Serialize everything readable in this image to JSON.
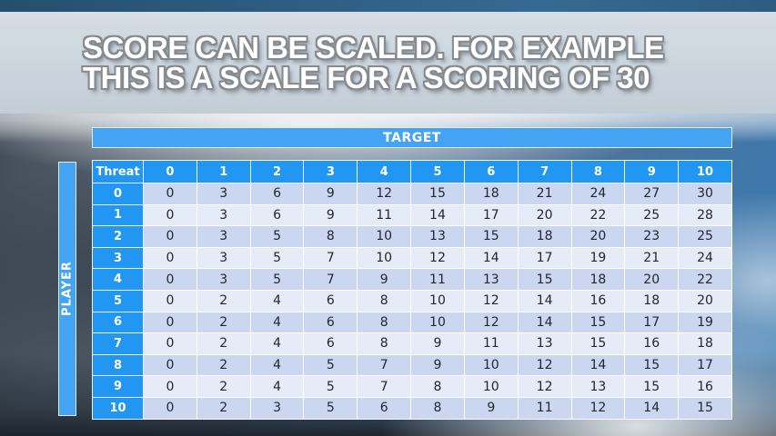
{
  "slide": {
    "title_line1": "SCORE CAN BE SCALED. FOR EXAMPLE",
    "title_line2": "THIS IS A SCALE FOR A SCORING OF 30"
  },
  "table": {
    "target_label": "TARGET",
    "player_label": "PLAYER",
    "threat_label": "Threat",
    "columns": [
      "0",
      "1",
      "2",
      "3",
      "4",
      "5",
      "6",
      "7",
      "8",
      "9",
      "10"
    ],
    "rows": [
      {
        "threat": "0",
        "values": [
          0,
          3,
          6,
          9,
          12,
          15,
          18,
          21,
          24,
          27,
          30
        ]
      },
      {
        "threat": "1",
        "values": [
          0,
          3,
          6,
          9,
          11,
          14,
          17,
          20,
          22,
          25,
          28
        ]
      },
      {
        "threat": "2",
        "values": [
          0,
          3,
          5,
          8,
          10,
          13,
          15,
          18,
          20,
          23,
          25
        ]
      },
      {
        "threat": "3",
        "values": [
          0,
          3,
          5,
          7,
          10,
          12,
          14,
          17,
          19,
          21,
          24
        ]
      },
      {
        "threat": "4",
        "values": [
          0,
          3,
          5,
          7,
          9,
          11,
          13,
          15,
          18,
          20,
          22
        ]
      },
      {
        "threat": "5",
        "values": [
          0,
          2,
          4,
          6,
          8,
          10,
          12,
          14,
          16,
          18,
          20
        ]
      },
      {
        "threat": "6",
        "values": [
          0,
          2,
          4,
          6,
          8,
          10,
          12,
          14,
          15,
          17,
          19
        ]
      },
      {
        "threat": "7",
        "values": [
          0,
          2,
          4,
          6,
          8,
          9,
          11,
          13,
          15,
          16,
          18
        ]
      },
      {
        "threat": "8",
        "values": [
          0,
          2,
          4,
          5,
          7,
          9,
          10,
          12,
          14,
          15,
          17
        ]
      },
      {
        "threat": "9",
        "values": [
          0,
          2,
          4,
          5,
          7,
          8,
          10,
          12,
          13,
          15,
          16
        ]
      },
      {
        "threat": "10",
        "values": [
          0,
          2,
          3,
          5,
          6,
          8,
          9,
          11,
          12,
          14,
          15
        ]
      }
    ]
  },
  "colors": {
    "header_blue": "#2196f3",
    "banner_blue": "#44a3f3",
    "row_even": "#cbd7f1",
    "row_odd": "#e6ebf8",
    "title_text": "#ffffff",
    "title_outline": "#858b91"
  }
}
